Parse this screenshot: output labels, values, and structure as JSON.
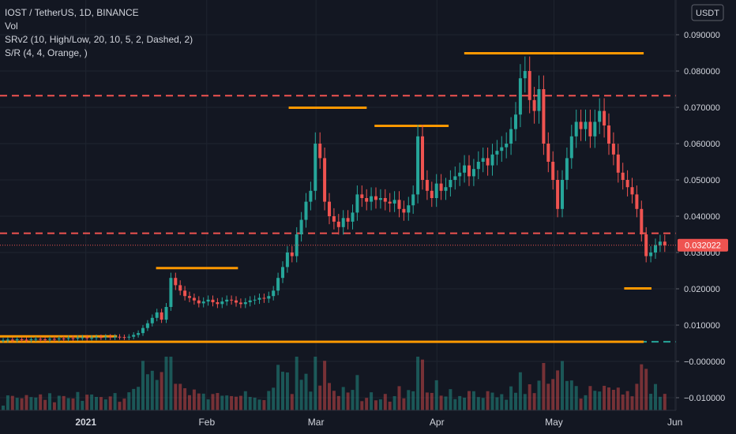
{
  "header": {
    "symbol_line": "IOST / TetherUS, 1D, BINANCE",
    "indicators": [
      "Vol",
      "SRv2 (10, High/Low, 20, 10, 5, 2, Dashed, 2)",
      "S/R (4, 4, Orange, )"
    ]
  },
  "currency_label": "USDT",
  "colors": {
    "background": "#131722",
    "up": "#26a69a",
    "down": "#ef5350",
    "orange": "#ff9800",
    "grid": "#1f2430",
    "text": "#d1d4dc",
    "price_badge": "#ef5350"
  },
  "chart_data": {
    "type": "candlestick",
    "title": "IOST / TetherUS, 1D, BINANCE",
    "y_axis": {
      "ticks": [
        "0.090000",
        "0.080000",
        "0.070000",
        "0.060000",
        "0.050000",
        "0.040000",
        "0.030000",
        "0.020000",
        "0.010000",
        "−0.000000",
        "−0.010000"
      ],
      "range": [
        -0.0125,
        0.0995
      ]
    },
    "x_axis": {
      "ticks": [
        "2021",
        "Feb",
        "Mar",
        "Apr",
        "May",
        "Jun"
      ]
    },
    "current_price": "0.032022",
    "current_price_value": 0.032022,
    "support_resistance_dashed": [
      {
        "level": 0.0732,
        "color": "#ef5350"
      },
      {
        "level": 0.0353,
        "color": "#ef5350"
      },
      {
        "level": 0.0054,
        "color": "#26a69a"
      }
    ],
    "orange_levels": [
      {
        "level": 0.0054,
        "from": "2020-12-10",
        "to": "2021-05-24"
      },
      {
        "level": 0.0069,
        "from": "2020-12-10",
        "to": "2021-01-09"
      },
      {
        "level": 0.0257,
        "from": "2021-01-19",
        "to": "2021-02-09"
      },
      {
        "level": 0.0699,
        "from": "2021-02-22",
        "to": "2021-03-14"
      },
      {
        "level": 0.0649,
        "from": "2021-03-16",
        "to": "2021-04-04"
      },
      {
        "level": 0.0849,
        "from": "2021-04-08",
        "to": "2021-05-24"
      },
      {
        "level": 0.0201,
        "from": "2021-05-19",
        "to": "2021-05-26"
      }
    ],
    "candles_close": [
      0.0058,
      0.006,
      0.0059,
      0.0061,
      0.006,
      0.0059,
      0.0061,
      0.0062,
      0.0061,
      0.006,
      0.0062,
      0.0061,
      0.0063,
      0.0062,
      0.0064,
      0.0063,
      0.0065,
      0.0066,
      0.0064,
      0.0065,
      0.0067,
      0.0066,
      0.0068,
      0.0066,
      0.0068,
      0.0067,
      0.0066,
      0.0068,
      0.0073,
      0.0078,
      0.0092,
      0.0105,
      0.012,
      0.0135,
      0.0115,
      0.015,
      0.023,
      0.021,
      0.0195,
      0.018,
      0.0175,
      0.0168,
      0.016,
      0.0165,
      0.017,
      0.0163,
      0.0158,
      0.0165,
      0.017,
      0.0168,
      0.0162,
      0.0158,
      0.0163,
      0.0168,
      0.017,
      0.0175,
      0.0173,
      0.018,
      0.0195,
      0.023,
      0.026,
      0.03,
      0.029,
      0.035,
      0.039,
      0.044,
      0.047,
      0.06,
      0.056,
      0.044,
      0.04,
      0.0385,
      0.037,
      0.0395,
      0.0385,
      0.041,
      0.046,
      0.045,
      0.044,
      0.0455,
      0.0445,
      0.045,
      0.044,
      0.0435,
      0.0445,
      0.042,
      0.041,
      0.043,
      0.046,
      0.062,
      0.05,
      0.047,
      0.045,
      0.049,
      0.047,
      0.048,
      0.05,
      0.051,
      0.052,
      0.054,
      0.051,
      0.053,
      0.055,
      0.056,
      0.054,
      0.057,
      0.058,
      0.059,
      0.06,
      0.064,
      0.068,
      0.078,
      0.08,
      0.072,
      0.069,
      0.075,
      0.06,
      0.055,
      0.05,
      0.042,
      0.05,
      0.056,
      0.062,
      0.066,
      0.064,
      0.066,
      0.062,
      0.066,
      0.069,
      0.065,
      0.06,
      0.057,
      0.052,
      0.05,
      0.048,
      0.046,
      0.042,
      0.035,
      0.029,
      0.03,
      0.032,
      0.033,
      0.032
    ]
  }
}
